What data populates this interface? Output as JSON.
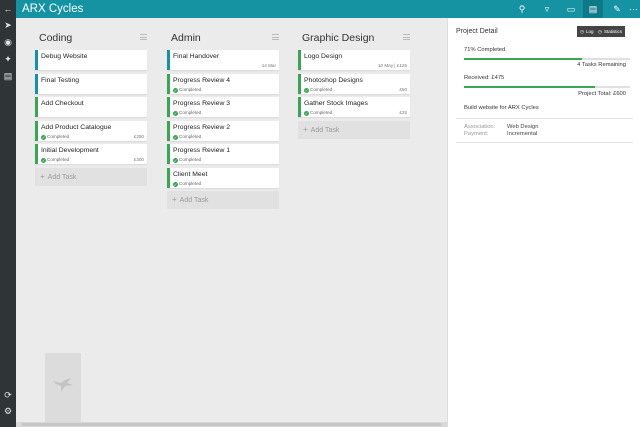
{
  "app": {
    "title": "ARX Cycles",
    "header_icons": [
      "search-icon",
      "filter-icon",
      "window-icon",
      "board-view-icon",
      "edit-icon",
      "more-icon"
    ]
  },
  "sidebar": {
    "top_icons": [
      "back-icon",
      "send-icon",
      "settings-icon",
      "pin-icon",
      "chart-icon"
    ],
    "bottom_icons": [
      "sync-icon",
      "gear-icon"
    ]
  },
  "board": {
    "add_task_label": "Add Task",
    "columns": [
      {
        "title": "Coding",
        "cards": [
          {
            "name": "Debug Website",
            "status": "",
            "meta": "",
            "color": "blue"
          },
          {
            "name": "Final Testing",
            "status": "",
            "meta": "",
            "color": "blue"
          },
          {
            "name": "Add Checkout",
            "status": "",
            "meta": "",
            "color": "green"
          },
          {
            "name": "Add Product Catalogue",
            "status": "Completed",
            "meta": "£250",
            "color": "green"
          },
          {
            "name": "Initial Development",
            "status": "Completed",
            "meta": "£300",
            "color": "green"
          }
        ]
      },
      {
        "title": "Admin",
        "cards": [
          {
            "name": "Final Handover",
            "status": "",
            "meta": "14 Mar",
            "color": "blue"
          },
          {
            "name": "Progress Review 4",
            "status": "Completed",
            "meta": "",
            "color": "green"
          },
          {
            "name": "Progress Review 3",
            "status": "Completed",
            "meta": "",
            "color": "green"
          },
          {
            "name": "Progress Review 2",
            "status": "Completed",
            "meta": "",
            "color": "green"
          },
          {
            "name": "Progress Review 1",
            "status": "Completed",
            "meta": "",
            "color": "green"
          },
          {
            "name": "Client Meet",
            "status": "Completed",
            "meta": "",
            "color": "green"
          }
        ]
      },
      {
        "title": "Graphic Design",
        "cards": [
          {
            "name": "Logo Design",
            "status": "",
            "meta": "10 May | £125",
            "color": "green"
          },
          {
            "name": "Photoshop Designs",
            "status": "Completed",
            "meta": "£50",
            "color": "green"
          },
          {
            "name": "Gather Stock Images",
            "status": "Completed",
            "meta": "£25",
            "color": "green"
          }
        ]
      }
    ]
  },
  "panel": {
    "title": "Project Detail",
    "tabs": [
      {
        "label": "Log",
        "icon": "history-icon"
      },
      {
        "label": "Statistics",
        "icon": "stats-icon"
      }
    ],
    "completion_label": "71% Completed",
    "completion_fraction": 0.71,
    "tasks_remaining": "4 Tasks Remaining",
    "received_label": "Received: £475",
    "received_fraction": 0.79,
    "project_total": "Project Total: £600",
    "description": "Build website for ARX Cycles",
    "details": [
      {
        "label": "Association:",
        "value": "Web Design"
      },
      {
        "label": "Payment:",
        "value": "Incremental"
      }
    ]
  },
  "colors": {
    "header": "#1593a3",
    "rail": "#2f3437",
    "green": "#39a653",
    "blue": "#1593a3"
  }
}
